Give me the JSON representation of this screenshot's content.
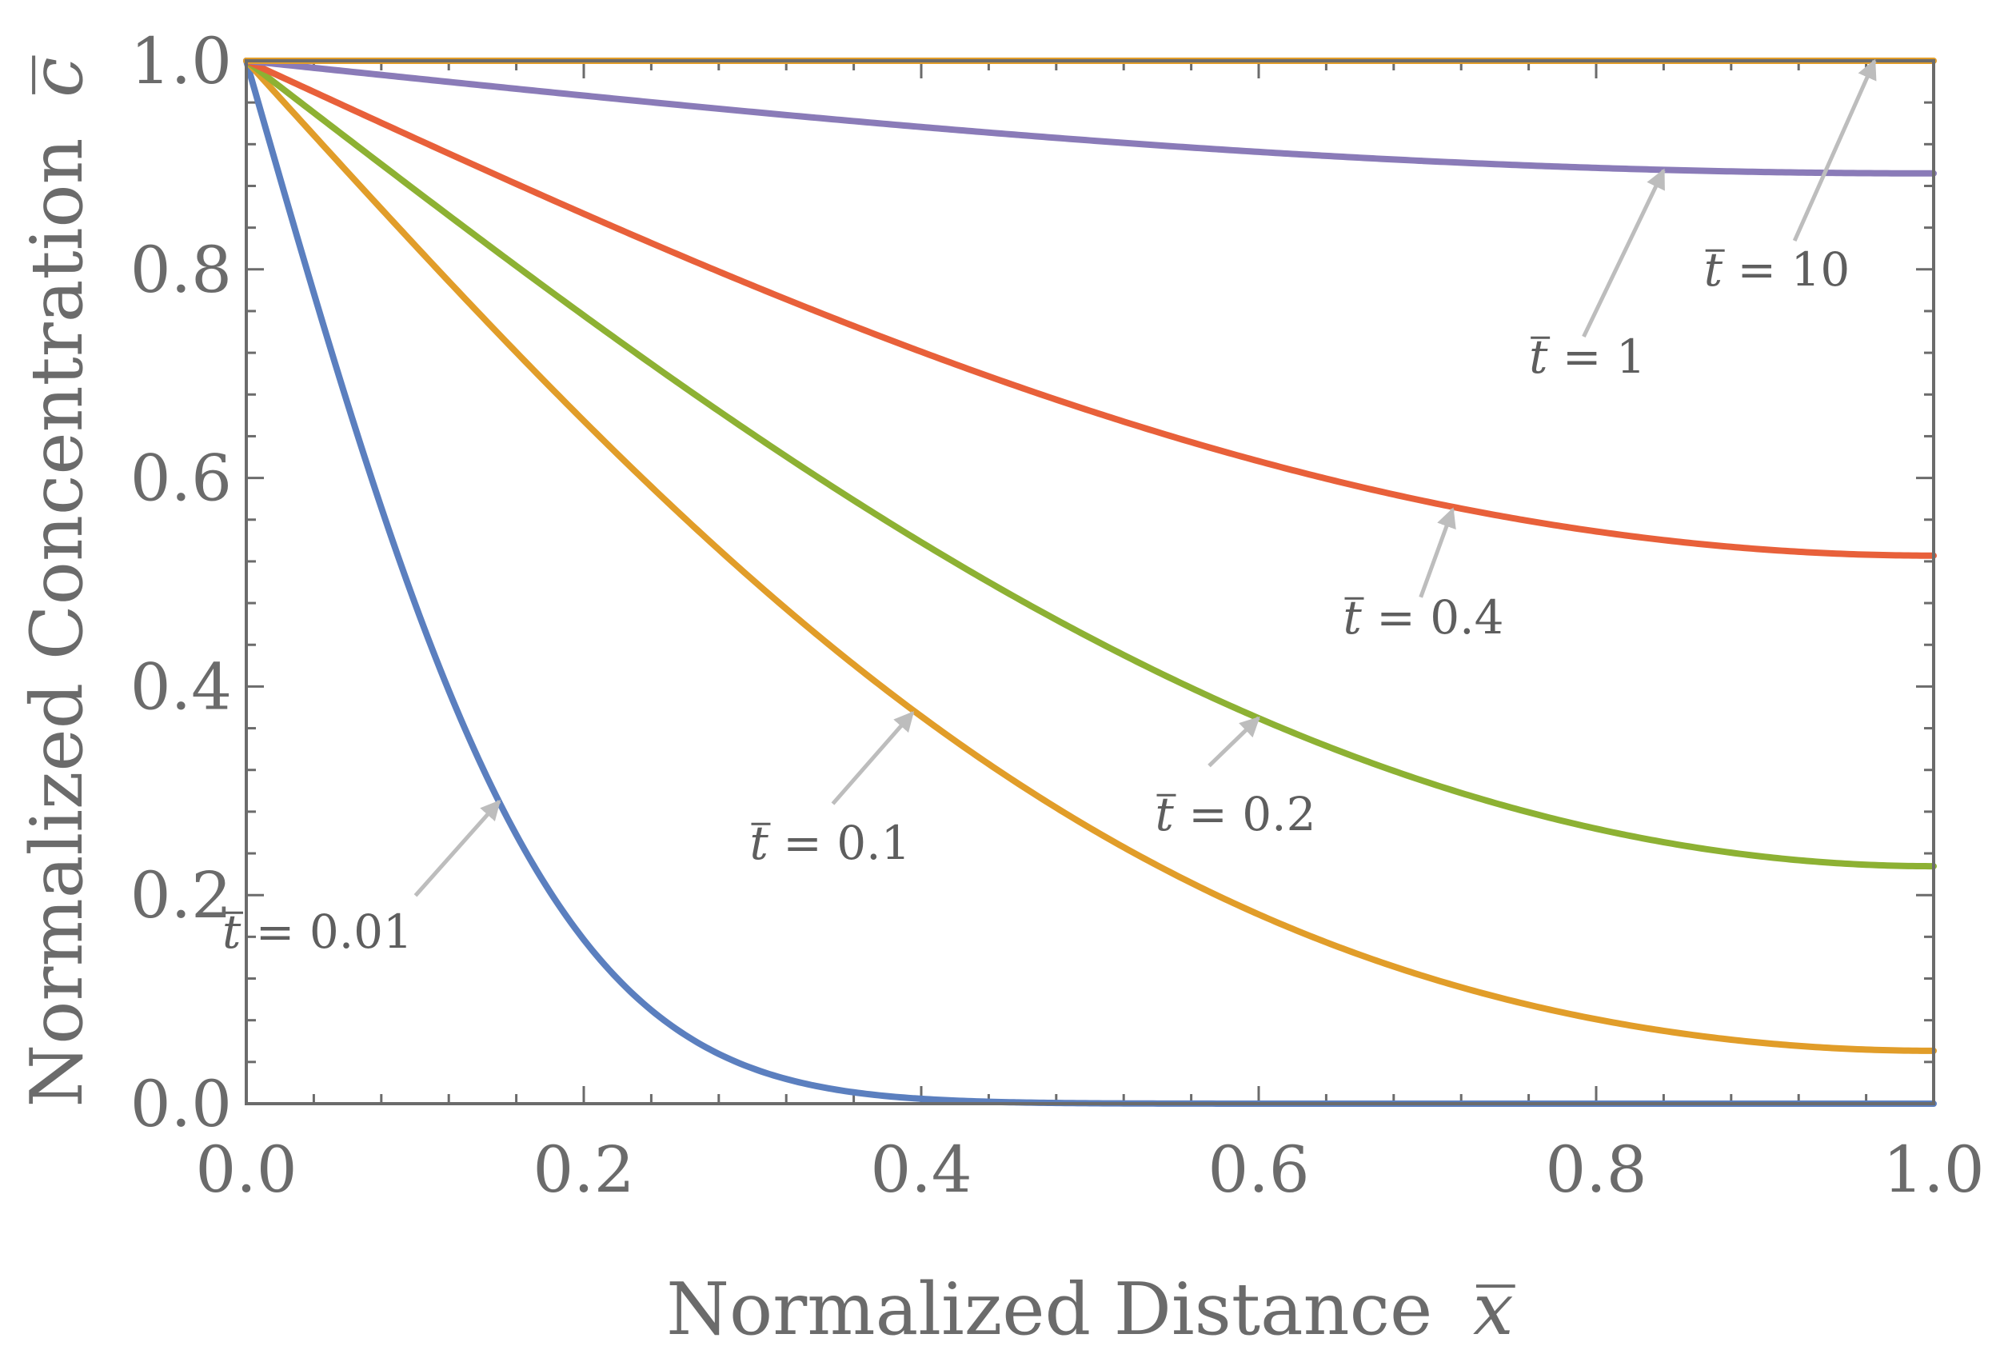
{
  "chart_data": {
    "type": "line",
    "title": "",
    "xlabel": "Normalized Distance",
    "xlabel_symbol": "x",
    "ylabel": "Normalized Concentration",
    "ylabel_symbol": "c",
    "xlim": [
      0.0,
      1.0
    ],
    "ylim": [
      0.0,
      1.0
    ],
    "x_ticks": [
      "0.0",
      "0.2",
      "0.4",
      "0.6",
      "0.8",
      "1.0"
    ],
    "y_ticks": [
      "0.0",
      "0.2",
      "0.4",
      "0.6",
      "0.8",
      "1.0"
    ],
    "grid": false,
    "legend": "none",
    "series": [
      {
        "name": "t = 0.01",
        "t": 0.01,
        "color": "#5b7fbf"
      },
      {
        "name": "t = 0.1",
        "t": 0.1,
        "color": "#e19d29"
      },
      {
        "name": "t = 0.2",
        "t": 0.2,
        "color": "#8db133"
      },
      {
        "name": "t = 0.4",
        "t": 0.4,
        "color": "#e8603a"
      },
      {
        "name": "t = 1",
        "t": 1,
        "color": "#8a7bb8"
      },
      {
        "name": "t = 10",
        "t": 10,
        "color": "#e19d29"
      }
    ],
    "annotations": [
      {
        "label": "t = 0.01",
        "symbol": "t",
        "value": "0.01",
        "points_to": [
          0.15,
          0.29
        ]
      },
      {
        "label": "t = 0.1",
        "symbol": "t",
        "value": "0.1",
        "points_to": [
          0.395,
          0.375
        ]
      },
      {
        "label": "t = 0.2",
        "symbol": "t",
        "value": "0.2",
        "points_to": [
          0.6,
          0.37
        ]
      },
      {
        "label": "t = 0.4",
        "symbol": "t",
        "value": "0.4",
        "points_to": [
          0.715,
          0.57
        ]
      },
      {
        "label": "t = 1",
        "symbol": "t",
        "value": "1",
        "points_to": [
          0.84,
          0.895
        ]
      },
      {
        "label": "t = 10",
        "symbol": "t",
        "value": "10",
        "points_to": [
          0.965,
          1.0
        ]
      }
    ]
  },
  "colors": {
    "axis": "#6b6b6b",
    "arrow": "#bdbdbd"
  }
}
